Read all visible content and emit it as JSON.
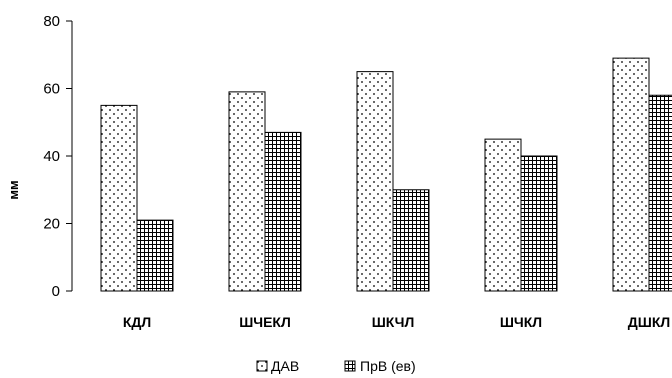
{
  "chart_data": {
    "type": "bar",
    "ylabel": "мм",
    "ylim": [
      0,
      80
    ],
    "yticks": [
      0,
      20,
      40,
      60,
      80
    ],
    "categories": [
      "КДЛ",
      "ШЧЕКЛ",
      "ШКЧЛ",
      "ШЧКЛ",
      "ДШКЛ"
    ],
    "series": [
      {
        "name": "ДАВ",
        "pattern": "dots",
        "values": [
          55,
          59,
          65,
          45,
          69
        ]
      },
      {
        "name": "ПрВ (ев)",
        "pattern": "grid",
        "values": [
          21,
          47,
          30,
          40,
          58
        ]
      }
    ],
    "legend_position": "bottom",
    "grid": false
  }
}
